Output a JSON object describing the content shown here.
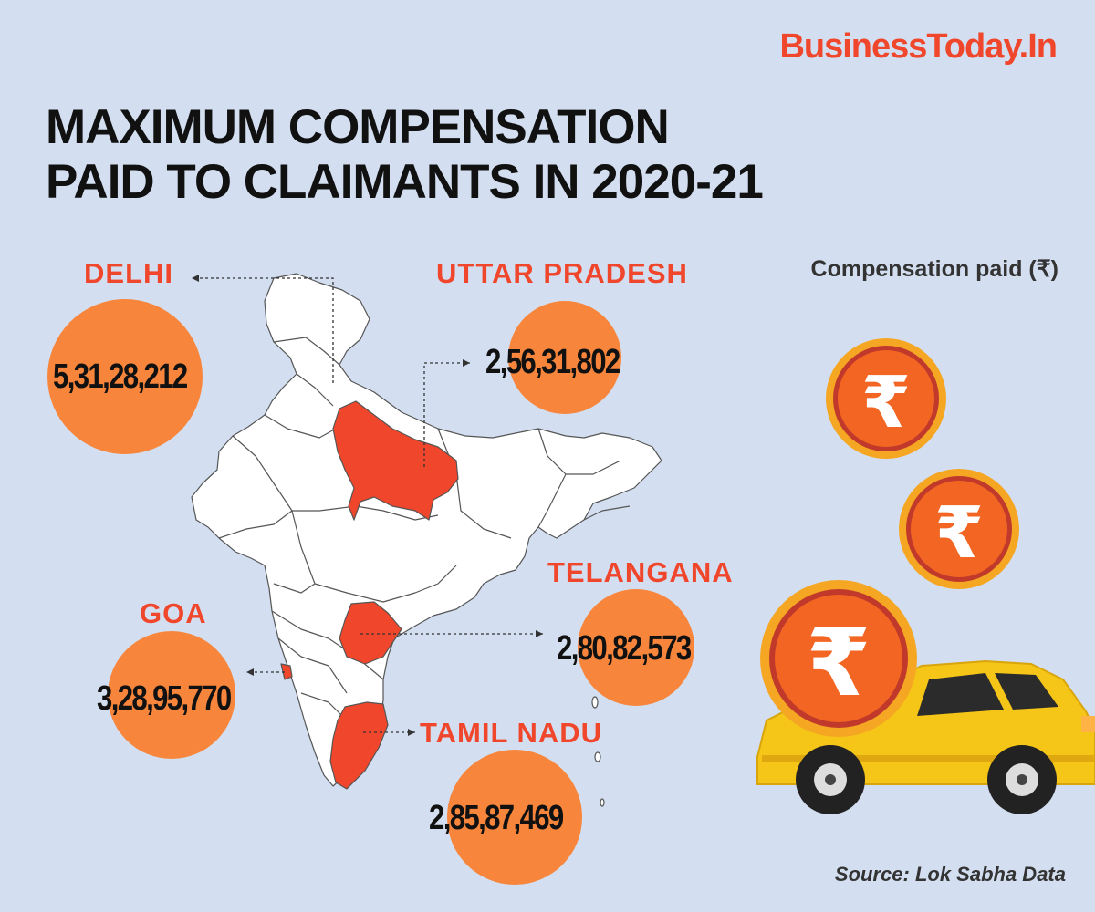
{
  "brand": "BusinessToday.In",
  "title": {
    "line1": "MAXIMUM COMPENSATION",
    "line2": "PAID TO CLAIMANTS IN 2020-21"
  },
  "legend": "Compensation paid (₹)",
  "states": [
    {
      "name": "DELHI",
      "value": "5,31,28,212"
    },
    {
      "name": "UTTAR PRADESH",
      "value": "2,56,31,802"
    },
    {
      "name": "TELANGANA",
      "value": "2,80,82,573"
    },
    {
      "name": "GOA",
      "value": "3,28,95,770"
    },
    {
      "name": "TAMIL NADU",
      "value": "2,85,87,469"
    }
  ],
  "rupee_symbol": "₹",
  "source": "Source: Lok Sabha Data",
  "colors": {
    "background": "#d3dff0",
    "accent": "#f0462b",
    "bubble": "#f7863c",
    "map_fill": "#ffffff",
    "highlight": "#f0462b",
    "car": "#f5c518"
  }
}
